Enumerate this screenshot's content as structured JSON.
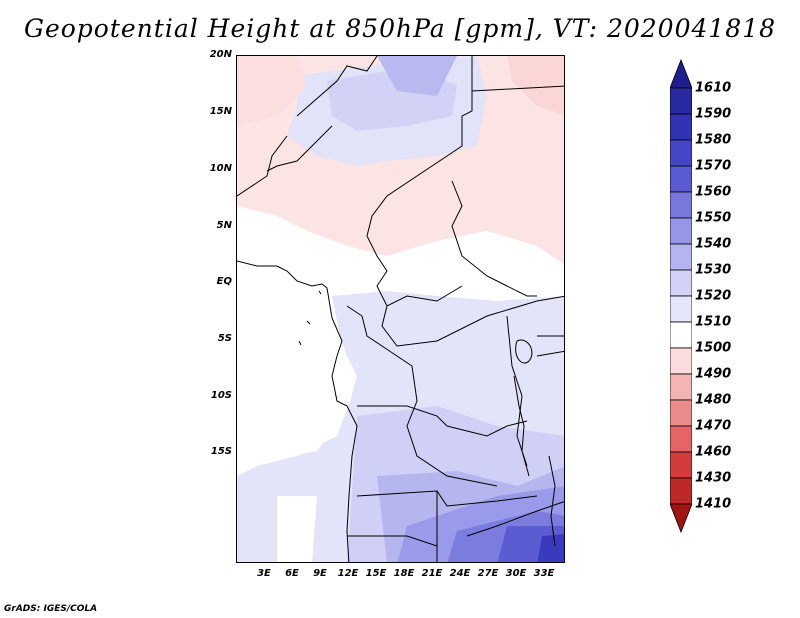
{
  "title": "Geopotential Height at 850hPa [gpm], VT: 2020041818",
  "credit": "GrADS: IGES/COLA",
  "map": {
    "variable": "Geopotential Height",
    "level": "850hPa",
    "units": "gpm",
    "valid_time": "2020041818",
    "lat_labels": [
      "20N",
      "15N",
      "10N",
      "5N",
      "EQ",
      "5S",
      "10S",
      "15S"
    ],
    "lon_labels": [
      "3E",
      "6E",
      "9E",
      "12E",
      "15E",
      "18E",
      "21E",
      "24E",
      "27E",
      "30E",
      "33E"
    ]
  },
  "colorbar": {
    "levels": [
      "1610",
      "1590",
      "1580",
      "1570",
      "1560",
      "1550",
      "1540",
      "1530",
      "1520",
      "1510",
      "1500",
      "1490",
      "1480",
      "1470",
      "1460",
      "1430",
      "1410"
    ],
    "colors": [
      "#1e1e8c",
      "#2828a0",
      "#3232b4",
      "#4646c8",
      "#5a5ad2",
      "#7878dc",
      "#9696e6",
      "#b4b4f0",
      "#d2d2f8",
      "#e6e6fa",
      "#ffffff",
      "#fadcdc",
      "#f5b4b4",
      "#eb8c8c",
      "#e66464",
      "#d23c3c",
      "#be2828",
      "#a01414"
    ]
  }
}
